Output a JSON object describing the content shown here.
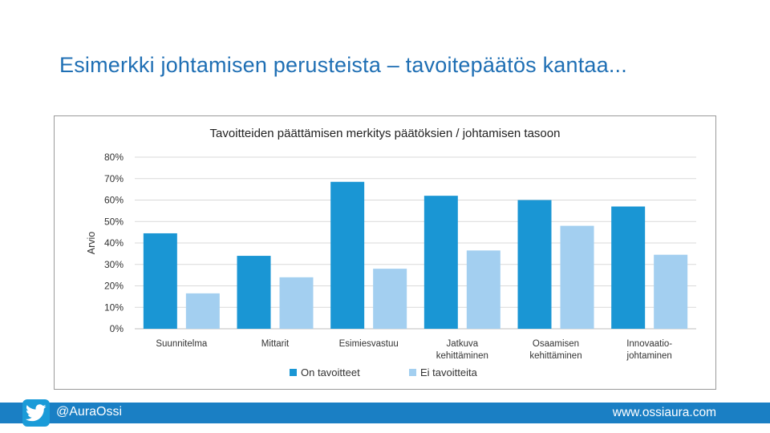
{
  "slide": {
    "title": "Esimerkki johtamisen perusteista – tavoitepäätös kantaa..."
  },
  "footer": {
    "twitter_handle": "@AuraOssi",
    "website": "www.ossiaura.com",
    "icon": "twitter-bird-icon",
    "bar_color": "#1a7fc4"
  },
  "chart_data": {
    "type": "bar",
    "title": "Tavoitteiden päättämisen merkitys päätöksien / johtamisen tasoon",
    "ylabel": "Arvio",
    "xlabel": "",
    "ylim": [
      0,
      80
    ],
    "y_ticks": [
      "0%",
      "10%",
      "20%",
      "30%",
      "40%",
      "50%",
      "60%",
      "70%",
      "80%"
    ],
    "grid": true,
    "legend_position": "bottom",
    "categories": [
      [
        "Suunnitelma"
      ],
      [
        "Mittarit"
      ],
      [
        "Esimiesvastuu"
      ],
      [
        "Jatkuva",
        "kehittäminen"
      ],
      [
        "Osaamisen",
        "kehittäminen"
      ],
      [
        "Innovaatio-",
        "johtaminen"
      ]
    ],
    "series": [
      {
        "name": "On tavoitteet",
        "color": "#1a96d4",
        "values": [
          44.5,
          34,
          68.5,
          62,
          60,
          57
        ]
      },
      {
        "name": "Ei tavoitteita",
        "color": "#a3cff0",
        "values": [
          16.5,
          24,
          28,
          36.5,
          48,
          34.5
        ]
      }
    ]
  }
}
